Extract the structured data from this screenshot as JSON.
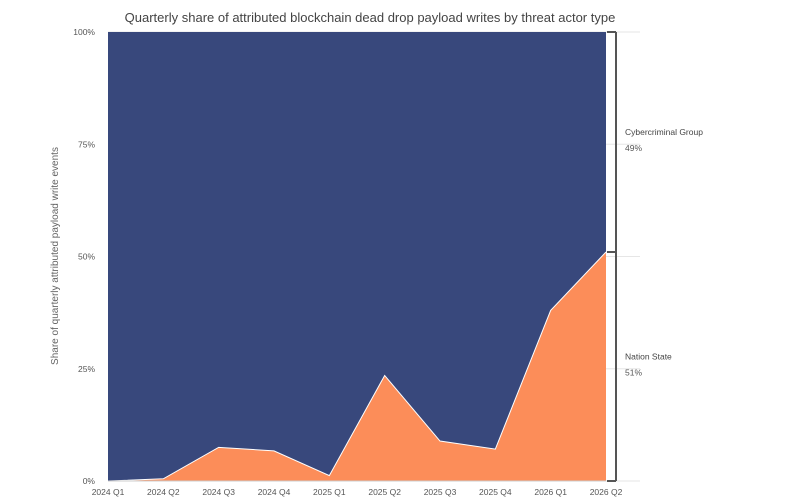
{
  "chart_data": {
    "type": "area",
    "stacking": "percent",
    "title": "Quarterly share of attributed blockchain dead drop payload writes by threat actor type",
    "xlabel": "",
    "ylabel": "Share of quarterly attributed payload write events",
    "categories": [
      "2024 Q1",
      "2024 Q2",
      "2024 Q3",
      "2024 Q4",
      "2025 Q1",
      "2025 Q2",
      "2025 Q3",
      "2025 Q4",
      "2026 Q1",
      "2026 Q2"
    ],
    "y_ticks": [
      "0%",
      "25%",
      "50%",
      "75%",
      "100%"
    ],
    "ylim": [
      0,
      100
    ],
    "series": [
      {
        "name": "Nation State",
        "color": "#fc8d59",
        "values": [
          0,
          0.5,
          7.5,
          6.7,
          1.2,
          23.5,
          8.9,
          7.1,
          38,
          51
        ]
      },
      {
        "name": "Cybercriminal Group",
        "color": "#38487c",
        "values": [
          100,
          99.5,
          92.5,
          93.3,
          98.8,
          76.5,
          91.1,
          92.9,
          62,
          49
        ]
      }
    ],
    "annotations": [
      {
        "label": "Cybercriminal Group",
        "value": "49%"
      },
      {
        "label": "Nation State",
        "value": "51%"
      }
    ],
    "grid": true,
    "legend": "right-side brackets"
  }
}
